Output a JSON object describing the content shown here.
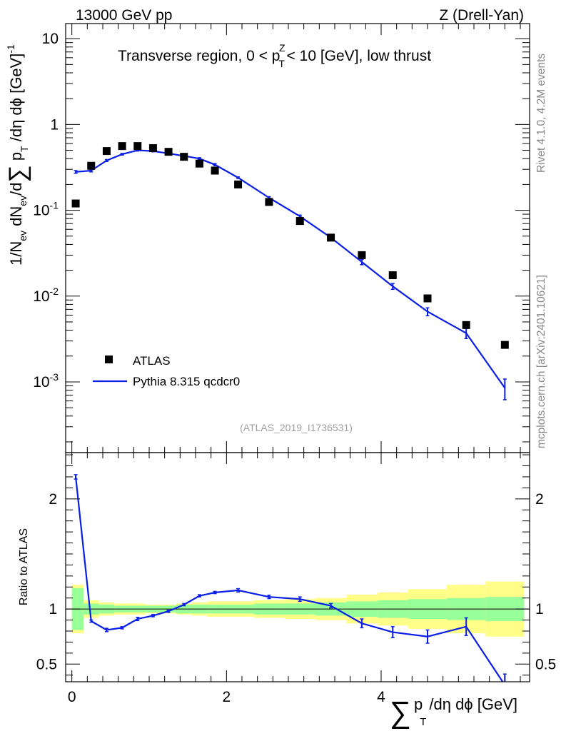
{
  "header": {
    "left": "13000 GeV pp",
    "right": "Z (Drell-Yan)"
  },
  "side": {
    "rivet": "Rivet 4.1.0,  4.2M events",
    "source": "mcplots.cern.ch [arXiv:2401.10621]"
  },
  "colors": {
    "atlas": "#000000",
    "pythia": "#0a1ee6",
    "band_inner": "#99ff99",
    "band_outer": "#ffff88",
    "watermark": "#a0a0a0"
  },
  "chart_data": [
    {
      "type": "scatter",
      "title": "Transverse region, 0 < p_T^Z < 10 [GeV], low thrust",
      "analysis_tag": "(ATLAS_2019_I1736531)",
      "ylabel": "1/N_ev dN_ev/d∑p_T/dη dϕ [GeV]^-1",
      "yscale": "log",
      "xlim": [
        -0.08,
        5.92
      ],
      "ylim": [
        0.00015,
        15
      ],
      "y_tick_labels": [
        "10^-3",
        "10^-2",
        "10^-1",
        "1",
        "10"
      ],
      "legend_position": "bottom-left",
      "series": [
        {
          "name": "ATLAS",
          "style": "markers",
          "x": [
            0.05,
            0.25,
            0.45,
            0.65,
            0.85,
            1.05,
            1.25,
            1.45,
            1.65,
            1.85,
            2.15,
            2.55,
            2.95,
            3.35,
            3.75,
            4.15,
            4.6,
            5.1,
            5.6
          ],
          "y": [
            0.12,
            0.33,
            0.49,
            0.56,
            0.56,
            0.53,
            0.48,
            0.42,
            0.35,
            0.29,
            0.2,
            0.125,
            0.075,
            0.048,
            0.03,
            0.0175,
            0.0094,
            0.0046,
            0.0027
          ]
        },
        {
          "name": "Pythia 8.315 qcdcr0",
          "style": "line",
          "x": [
            0.05,
            0.25,
            0.45,
            0.65,
            0.85,
            1.05,
            1.25,
            1.45,
            1.65,
            1.85,
            2.15,
            2.55,
            2.95,
            3.35,
            3.75,
            4.15,
            4.6,
            5.1,
            5.6
          ],
          "y": [
            0.28,
            0.29,
            0.38,
            0.45,
            0.5,
            0.49,
            0.46,
            0.43,
            0.4,
            0.34,
            0.24,
            0.14,
            0.085,
            0.048,
            0.025,
            0.013,
            0.0066,
            0.0037,
            0.00085
          ],
          "err": [
            0.01,
            0.01,
            0.01,
            0.01,
            0.01,
            0.01,
            0.01,
            0.01,
            0.01,
            0.01,
            0.005,
            0.004,
            0.003,
            0.002,
            0.0018,
            0.001,
            0.0007,
            0.0005,
            0.00023
          ]
        }
      ]
    },
    {
      "type": "line",
      "ylabel": "Ratio to ATLAS",
      "xlabel": "∑p_T/dη dϕ [GeV]",
      "xlim": [
        -0.08,
        5.92
      ],
      "ylim": [
        0.34,
        2.42
      ],
      "x_ticks": [
        0,
        2,
        4
      ],
      "y_ticks": [
        0.5,
        1,
        2
      ],
      "reference_line": 1,
      "bands": {
        "edges": [
          0,
          0.15,
          0.35,
          0.55,
          0.75,
          0.95,
          1.15,
          1.35,
          1.55,
          1.75,
          1.95,
          2.35,
          2.75,
          3.15,
          3.55,
          3.95,
          4.35,
          4.85,
          5.35,
          5.85
        ],
        "inner": [
          0.19,
          0.05,
          0.04,
          0.03,
          0.03,
          0.03,
          0.03,
          0.04,
          0.04,
          0.04,
          0.04,
          0.05,
          0.05,
          0.06,
          0.07,
          0.08,
          0.09,
          0.1,
          0.11
        ],
        "outer": [
          0.22,
          0.08,
          0.06,
          0.05,
          0.05,
          0.04,
          0.04,
          0.05,
          0.06,
          0.07,
          0.07,
          0.08,
          0.09,
          0.1,
          0.13,
          0.15,
          0.18,
          0.22,
          0.25
        ]
      },
      "series": [
        {
          "name": "Pythia 8.315 qcdcr0 / ATLAS",
          "x": [
            0.05,
            0.25,
            0.45,
            0.65,
            0.85,
            1.05,
            1.25,
            1.45,
            1.65,
            1.85,
            2.15,
            2.55,
            2.95,
            3.35,
            3.75,
            4.15,
            4.6,
            5.1,
            5.6
          ],
          "y": [
            2.2,
            0.89,
            0.81,
            0.83,
            0.91,
            0.94,
            0.98,
            1.04,
            1.12,
            1.15,
            1.17,
            1.11,
            1.09,
            1.03,
            0.87,
            0.79,
            0.75,
            0.84,
            0.31
          ],
          "err": [
            0.02,
            0.01,
            0.015,
            0.01,
            0.015,
            0.01,
            0.01,
            0.01,
            0.01,
            0.01,
            0.015,
            0.015,
            0.02,
            0.02,
            0.04,
            0.05,
            0.06,
            0.08,
            0.1
          ]
        }
      ]
    }
  ]
}
